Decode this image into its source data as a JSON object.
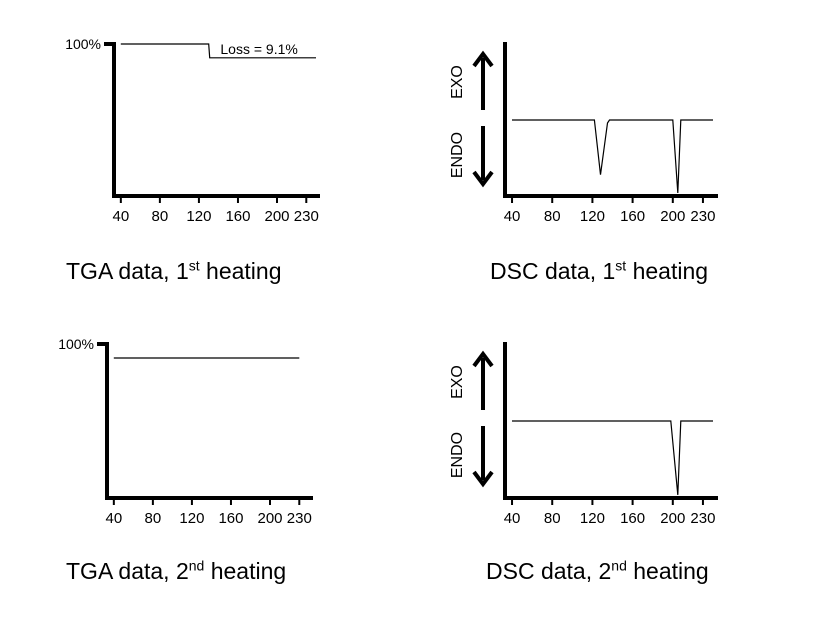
{
  "chart_data": [
    {
      "id": "tga1",
      "type": "line",
      "title_main": "TGA data, 1",
      "title_sup": "st",
      "title_rest": " heating",
      "x_ticks": [
        "40",
        "80",
        "120",
        "160",
        "200",
        "230"
      ],
      "x_tick_values": [
        40,
        80,
        120,
        160,
        200,
        230
      ],
      "xlim": [
        33,
        242
      ],
      "ylim": [
        0,
        100
      ],
      "y_tick_label": "100%",
      "y_tick_value": 100,
      "annotation": "Loss = 9.1%",
      "series": [
        {
          "x": [
            40,
            130,
            131,
            240
          ],
          "y": [
            100,
            100,
            90.9,
            90.9
          ]
        }
      ]
    },
    {
      "id": "dsc1",
      "type": "line",
      "title_main": "DSC data, 1",
      "title_sup": "st",
      "title_rest": " heating",
      "x_ticks": [
        "40",
        "80",
        "120",
        "160",
        "200",
        "230"
      ],
      "x_tick_values": [
        40,
        80,
        120,
        160,
        200,
        230
      ],
      "xlim": [
        33,
        243
      ],
      "ylim": [
        0,
        100
      ],
      "exo_label": "EXO",
      "endo_label": "ENDO",
      "series": [
        {
          "x": [
            40,
            122,
            128,
            135,
            137,
            200,
            205,
            208,
            240
          ],
          "y": [
            50,
            50,
            14,
            48,
            50,
            50,
            2,
            50,
            50
          ]
        }
      ]
    },
    {
      "id": "tga2",
      "type": "line",
      "title_main": "TGA data, 2",
      "title_sup": "nd",
      "title_rest": " heating",
      "x_ticks": [
        "40",
        "80",
        "120",
        "160",
        "200",
        "230"
      ],
      "x_tick_values": [
        40,
        80,
        120,
        160,
        200,
        230
      ],
      "xlim": [
        33,
        242
      ],
      "ylim": [
        0,
        100
      ],
      "y_tick_label": "100%",
      "y_tick_value": 100,
      "series": [
        {
          "x": [
            40,
            230
          ],
          "y": [
            90.9,
            90.9
          ]
        }
      ]
    },
    {
      "id": "dsc2",
      "type": "line",
      "title_main": "DSC data, 2",
      "title_sup": "nd",
      "title_rest": " heating",
      "x_ticks": [
        "40",
        "80",
        "120",
        "160",
        "200",
        "230"
      ],
      "x_tick_values": [
        40,
        80,
        120,
        160,
        200,
        230
      ],
      "xlim": [
        33,
        243
      ],
      "ylim": [
        0,
        100
      ],
      "exo_label": "EXO",
      "endo_label": "ENDO",
      "series": [
        {
          "x": [
            40,
            198,
            205,
            208,
            240
          ],
          "y": [
            50,
            50,
            2,
            50,
            50
          ]
        }
      ]
    }
  ]
}
